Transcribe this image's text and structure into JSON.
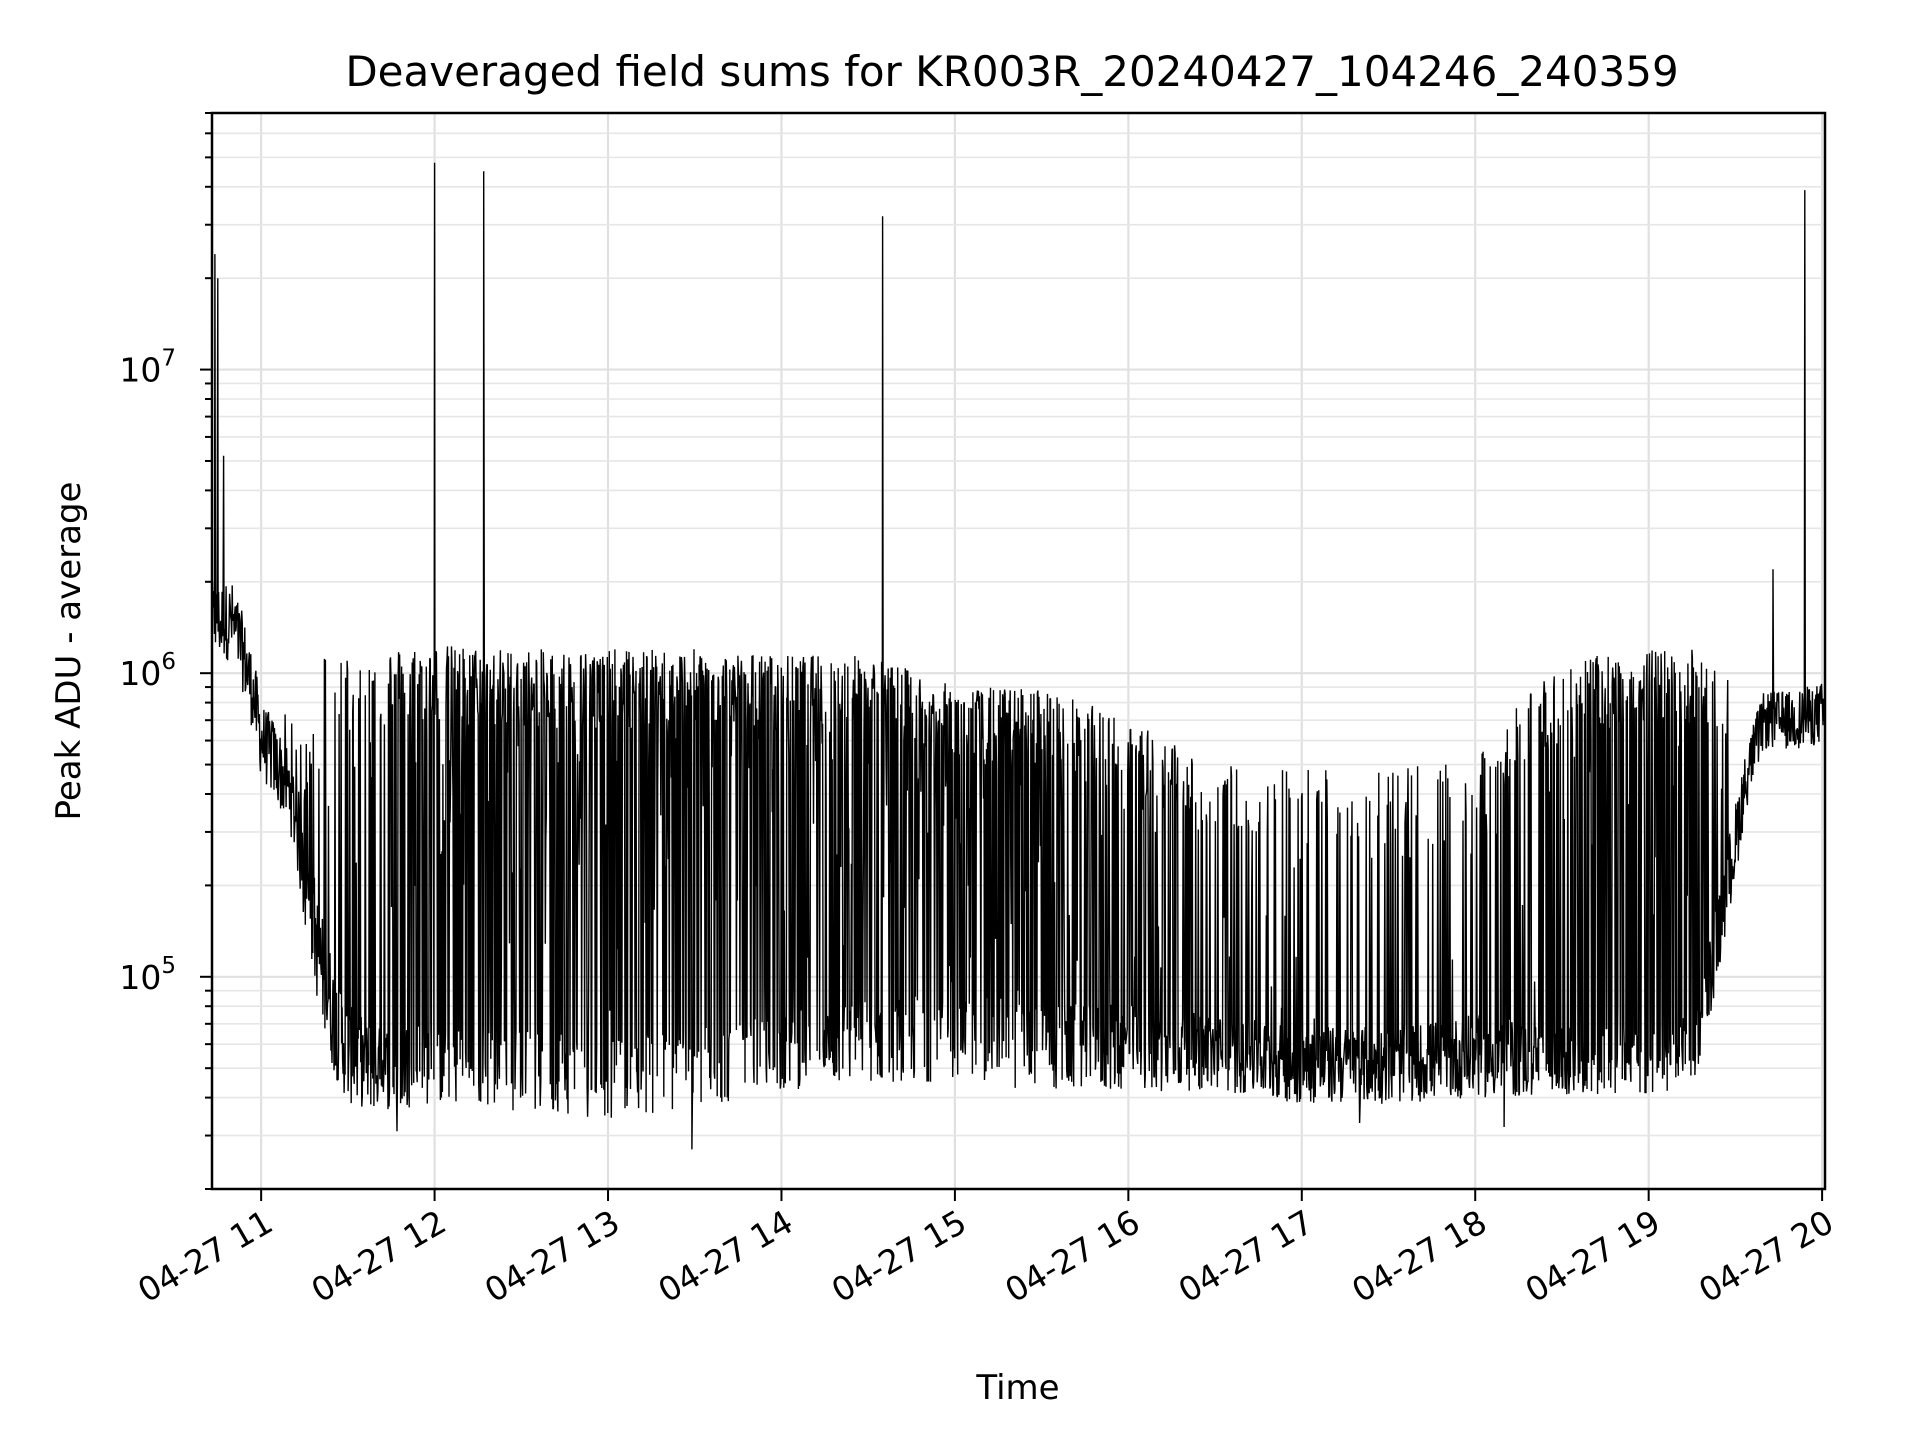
{
  "chart_data": {
    "type": "line",
    "title": "Deaveraged field sums for KR003R_20240427_104246_240359",
    "xlabel": "Time",
    "ylabel": "Peak ADU - average",
    "yscale": "log",
    "ylim": [
      20000,
      70000000
    ],
    "xlim": [
      "2024-04-27 10:43",
      "2024-04-27 20:01"
    ],
    "x_ticks": [
      "04-27 11",
      "04-27 12",
      "04-27 13",
      "04-27 14",
      "04-27 15",
      "04-27 16",
      "04-27 17",
      "04-27 18",
      "04-27 19",
      "04-27 20"
    ],
    "x_tick_times": [
      "2024-04-27 11:00",
      "2024-04-27 12:00",
      "2024-04-27 13:00",
      "2024-04-27 14:00",
      "2024-04-27 15:00",
      "2024-04-27 16:00",
      "2024-04-27 17:00",
      "2024-04-27 18:00",
      "2024-04-27 19:00",
      "2024-04-27 20:00"
    ],
    "y_ticks": [
      {
        "value": 100000,
        "base": "10",
        "exp": "5"
      },
      {
        "value": 1000000,
        "base": "10",
        "exp": "6"
      },
      {
        "value": 10000000,
        "base": "10",
        "exp": "7"
      }
    ],
    "grid": true,
    "line_color": "#000000",
    "series": [
      {
        "envelope": {
          "x": [
            "2024-04-27 10:43",
            "2024-04-27 10:50",
            "2024-04-27 11:00",
            "2024-04-27 11:10",
            "2024-04-27 11:15",
            "2024-04-27 11:20",
            "2024-04-27 11:25",
            "2024-04-27 11:30",
            "2024-04-27 11:40",
            "2024-04-27 12:00",
            "2024-04-27 12:30",
            "2024-04-27 13:00",
            "2024-04-27 13:30",
            "2024-04-27 14:00",
            "2024-04-27 14:30",
            "2024-04-27 15:00",
            "2024-04-27 15:30",
            "2024-04-27 16:00",
            "2024-04-27 16:30",
            "2024-04-27 17:00",
            "2024-04-27 17:30",
            "2024-04-27 18:00",
            "2024-04-27 18:30",
            "2024-04-27 19:00",
            "2024-04-27 19:15",
            "2024-04-27 19:20",
            "2024-04-27 19:25",
            "2024-04-27 19:30",
            "2024-04-27 19:35",
            "2024-04-27 19:40",
            "2024-04-27 19:50",
            "2024-04-27 20:00",
            "2024-04-27 20:01"
          ],
          "baseline": [
            1600000,
            1600000,
            650000,
            450000,
            250000,
            140000,
            90000,
            65000,
            55000,
            60000,
            55000,
            50000,
            55000,
            60000,
            70000,
            70000,
            65000,
            65000,
            60000,
            55000,
            55000,
            60000,
            55000,
            55000,
            60000,
            95000,
            160000,
            300000,
            500000,
            700000,
            700000,
            750000,
            750000
          ],
          "low": [
            1100000,
            1100000,
            450000,
            300000,
            140000,
            75000,
            48000,
            38000,
            36000,
            38000,
            36000,
            34000,
            36000,
            42000,
            45000,
            45000,
            42000,
            42000,
            42000,
            38000,
            38000,
            40000,
            40000,
            40000,
            42000,
            60000,
            110000,
            200000,
            400000,
            560000,
            560000,
            580000,
            580000
          ],
          "burst_high": [
            2300000,
            2300000,
            900000,
            700000,
            600000,
            1200000,
            1200000,
            1200000,
            1200000,
            1250000,
            1200000,
            1200000,
            1200000,
            1150000,
            1150000,
            900000,
            900000,
            700000,
            500000,
            500000,
            500000,
            500000,
            1100000,
            1200000,
            1200000,
            1100000,
            1000000,
            950000,
            1000000,
            1200000,
            900000,
            850000,
            850000
          ],
          "burst_density": [
            0,
            0,
            0,
            0.25,
            0.25,
            0.25,
            0.3,
            0.35,
            0.45,
            0.8,
            0.95,
            0.95,
            0.95,
            0.9,
            0.85,
            0.85,
            0.75,
            0.55,
            0.35,
            0.25,
            0.2,
            0.3,
            0.55,
            0.7,
            0.75,
            0.3,
            0.1,
            0,
            0,
            0,
            0,
            0,
            0
          ]
        },
        "spikes": [
          {
            "x": "2024-04-27 10:44",
            "y": 24000000
          },
          {
            "x": "2024-04-27 10:45",
            "y": 20000000
          },
          {
            "x": "2024-04-27 10:47",
            "y": 5200000
          },
          {
            "x": "2024-04-27 12:00",
            "y": 48000000
          },
          {
            "x": "2024-04-27 12:17",
            "y": 45000000
          },
          {
            "x": "2024-04-27 14:35",
            "y": 32000000
          },
          {
            "x": "2024-04-27 19:43",
            "y": 2200000
          },
          {
            "x": "2024-04-27 19:54",
            "y": 39000000
          }
        ],
        "dips": [
          {
            "x": "2024-04-27 13:29",
            "y": 27000
          },
          {
            "x": "2024-04-27 11:47",
            "y": 31000
          },
          {
            "x": "2024-04-27 17:20",
            "y": 33000
          },
          {
            "x": "2024-04-27 18:10",
            "y": 32000
          }
        ]
      }
    ]
  }
}
